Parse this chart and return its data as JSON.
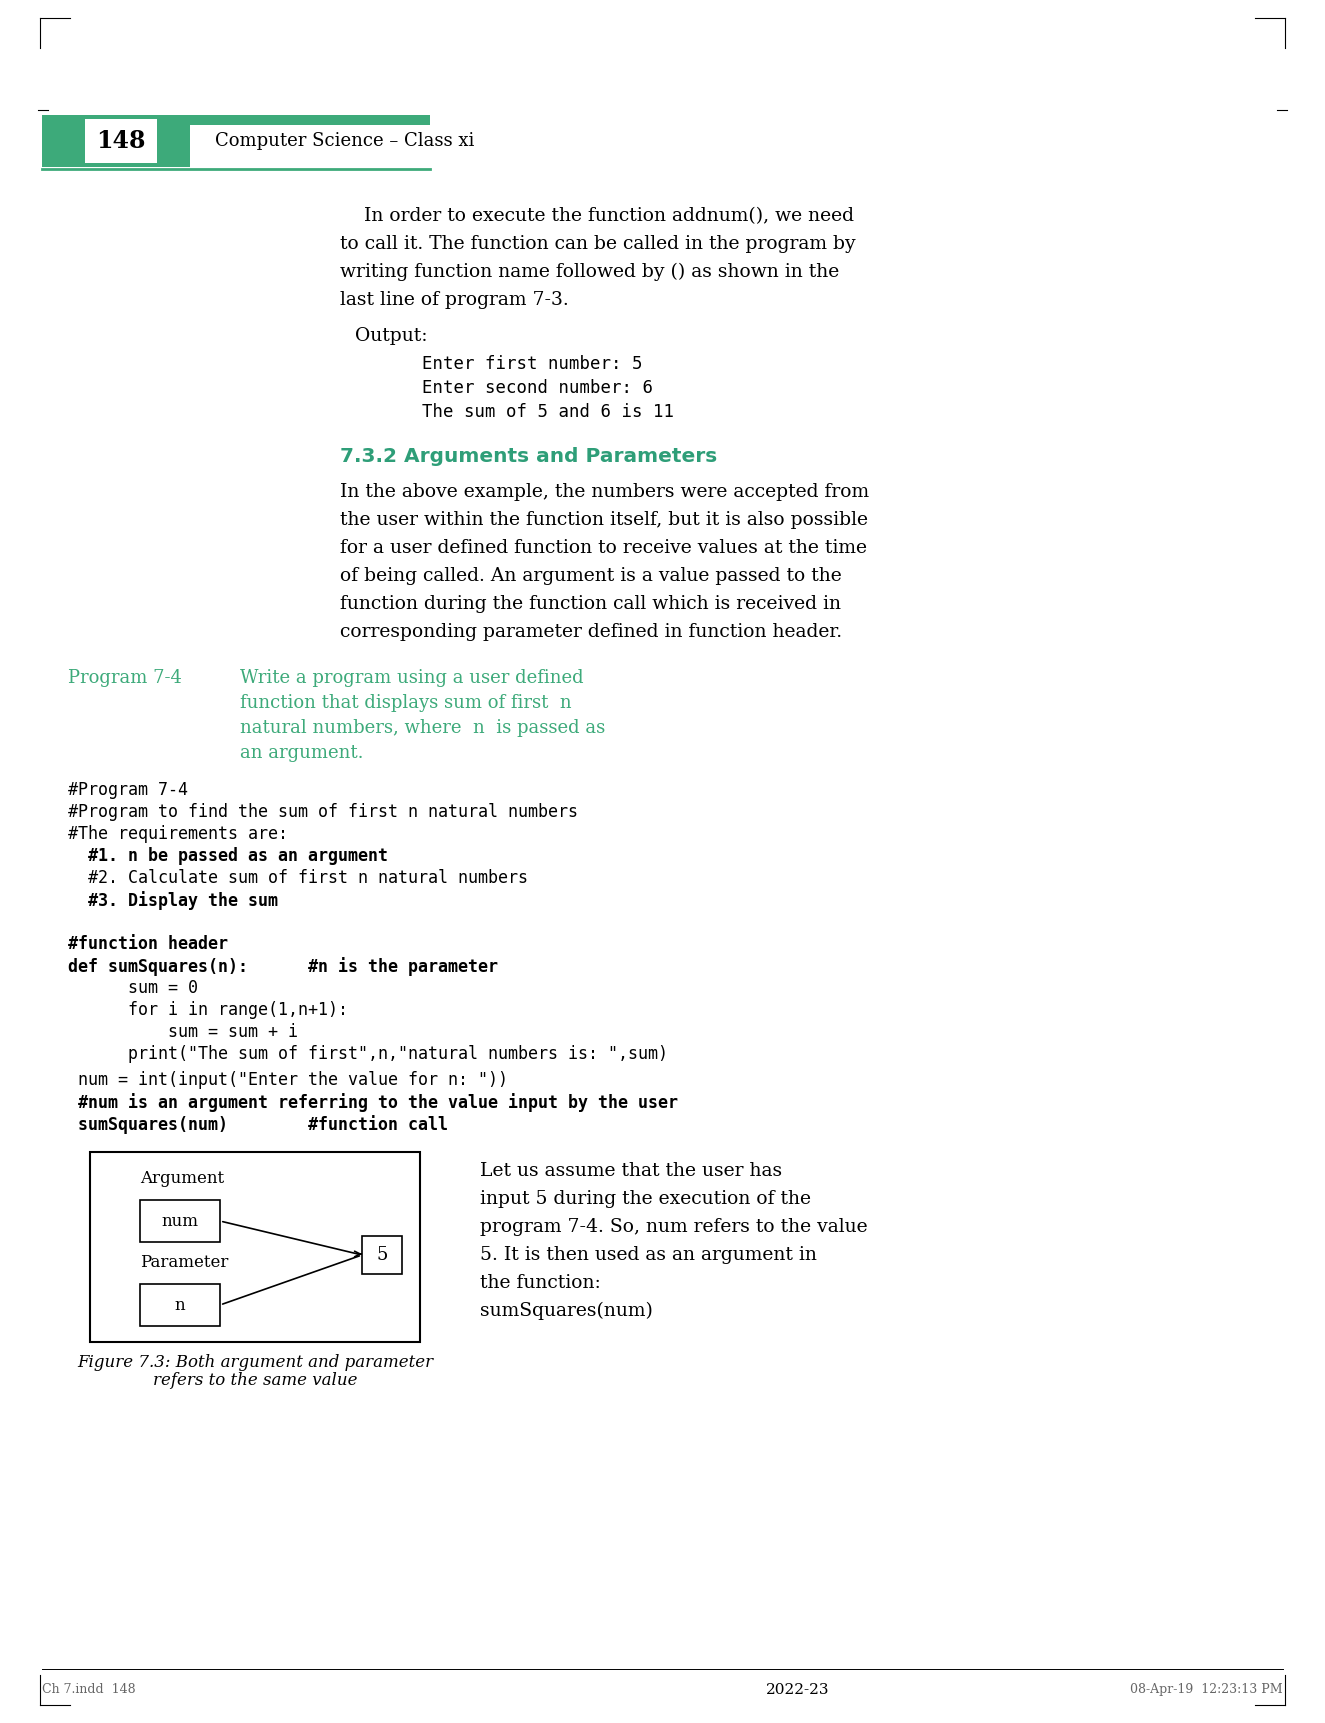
{
  "bg_color": "#ffffff",
  "page_bg": "#ffffff",
  "header_green": "#3daa7a",
  "header_text_color": "#000000",
  "page_number": "148",
  "header_title": "Computer Science – Class xi",
  "teal_color": "#2e9e78",
  "section_color": "#2e9e78",
  "program_color": "#3daa7a",
  "body_text_color": "#000000",
  "code_color": "#000000",
  "body_para1": "In order to execute the function addnum(), we need\nto call it. The function can be called in the program by\nwriting function name followed by () as shown in the\nlast line of program 7-3.",
  "output_label": "Output:",
  "output_code": "    Enter first number: 5\n    Enter second number: 6\n    The sum of 5 and 6 is 11",
  "section_heading": "7.3.2 Arguments and Parameters",
  "body_para2": "In the above example, the numbers were accepted from\nthe user within the function itself, but it is also possible\nfor a user defined function to receive values at the time\nof being called. An argument is a value passed to the\nfunction during the function call which is received in\ncorresponding parameter defined in function header.",
  "program_label": "Program 7-4",
  "program_desc": "Write a program using a user defined\nfunction that displays sum of first n\nnatural numbers, where n is passed as\nan argument.",
  "code_block": "#Program 7-4\n#Program to find the sum of first n natural numbers\n#The requirements are:\n  #1. n be passed as an argument\n  #2. Calculate sum of first n natural numbers\n  #3. Display the sum\n\n#function header\ndef sumSquares(n):      #n is the parameter\n      sum = 0\n      for i in range(1,n+1):\n          sum = sum + i\n      print(\"The sum of first\",n,\"natural numbers is: \",sum)\n\n num = int(input(\"Enter the value for n: \"))\n #num is an argument referring to the value input by the user\n sumSquares(num)        #function call",
  "fig_caption": "Figure 7.3: Both argument and parameter\nrefers to the same value",
  "right_text": "Let us assume that the user has\ninput 5 during the execution of the\nprogram 7-4. So, num refers to the value\n5. It is then used as an argument in\nthe function:\nsumSquares(num)",
  "footer_year": "2022-23",
  "footer_left": "Ch 7.indd  148",
  "footer_right": "08-Apr-19  12:23:13 PM"
}
